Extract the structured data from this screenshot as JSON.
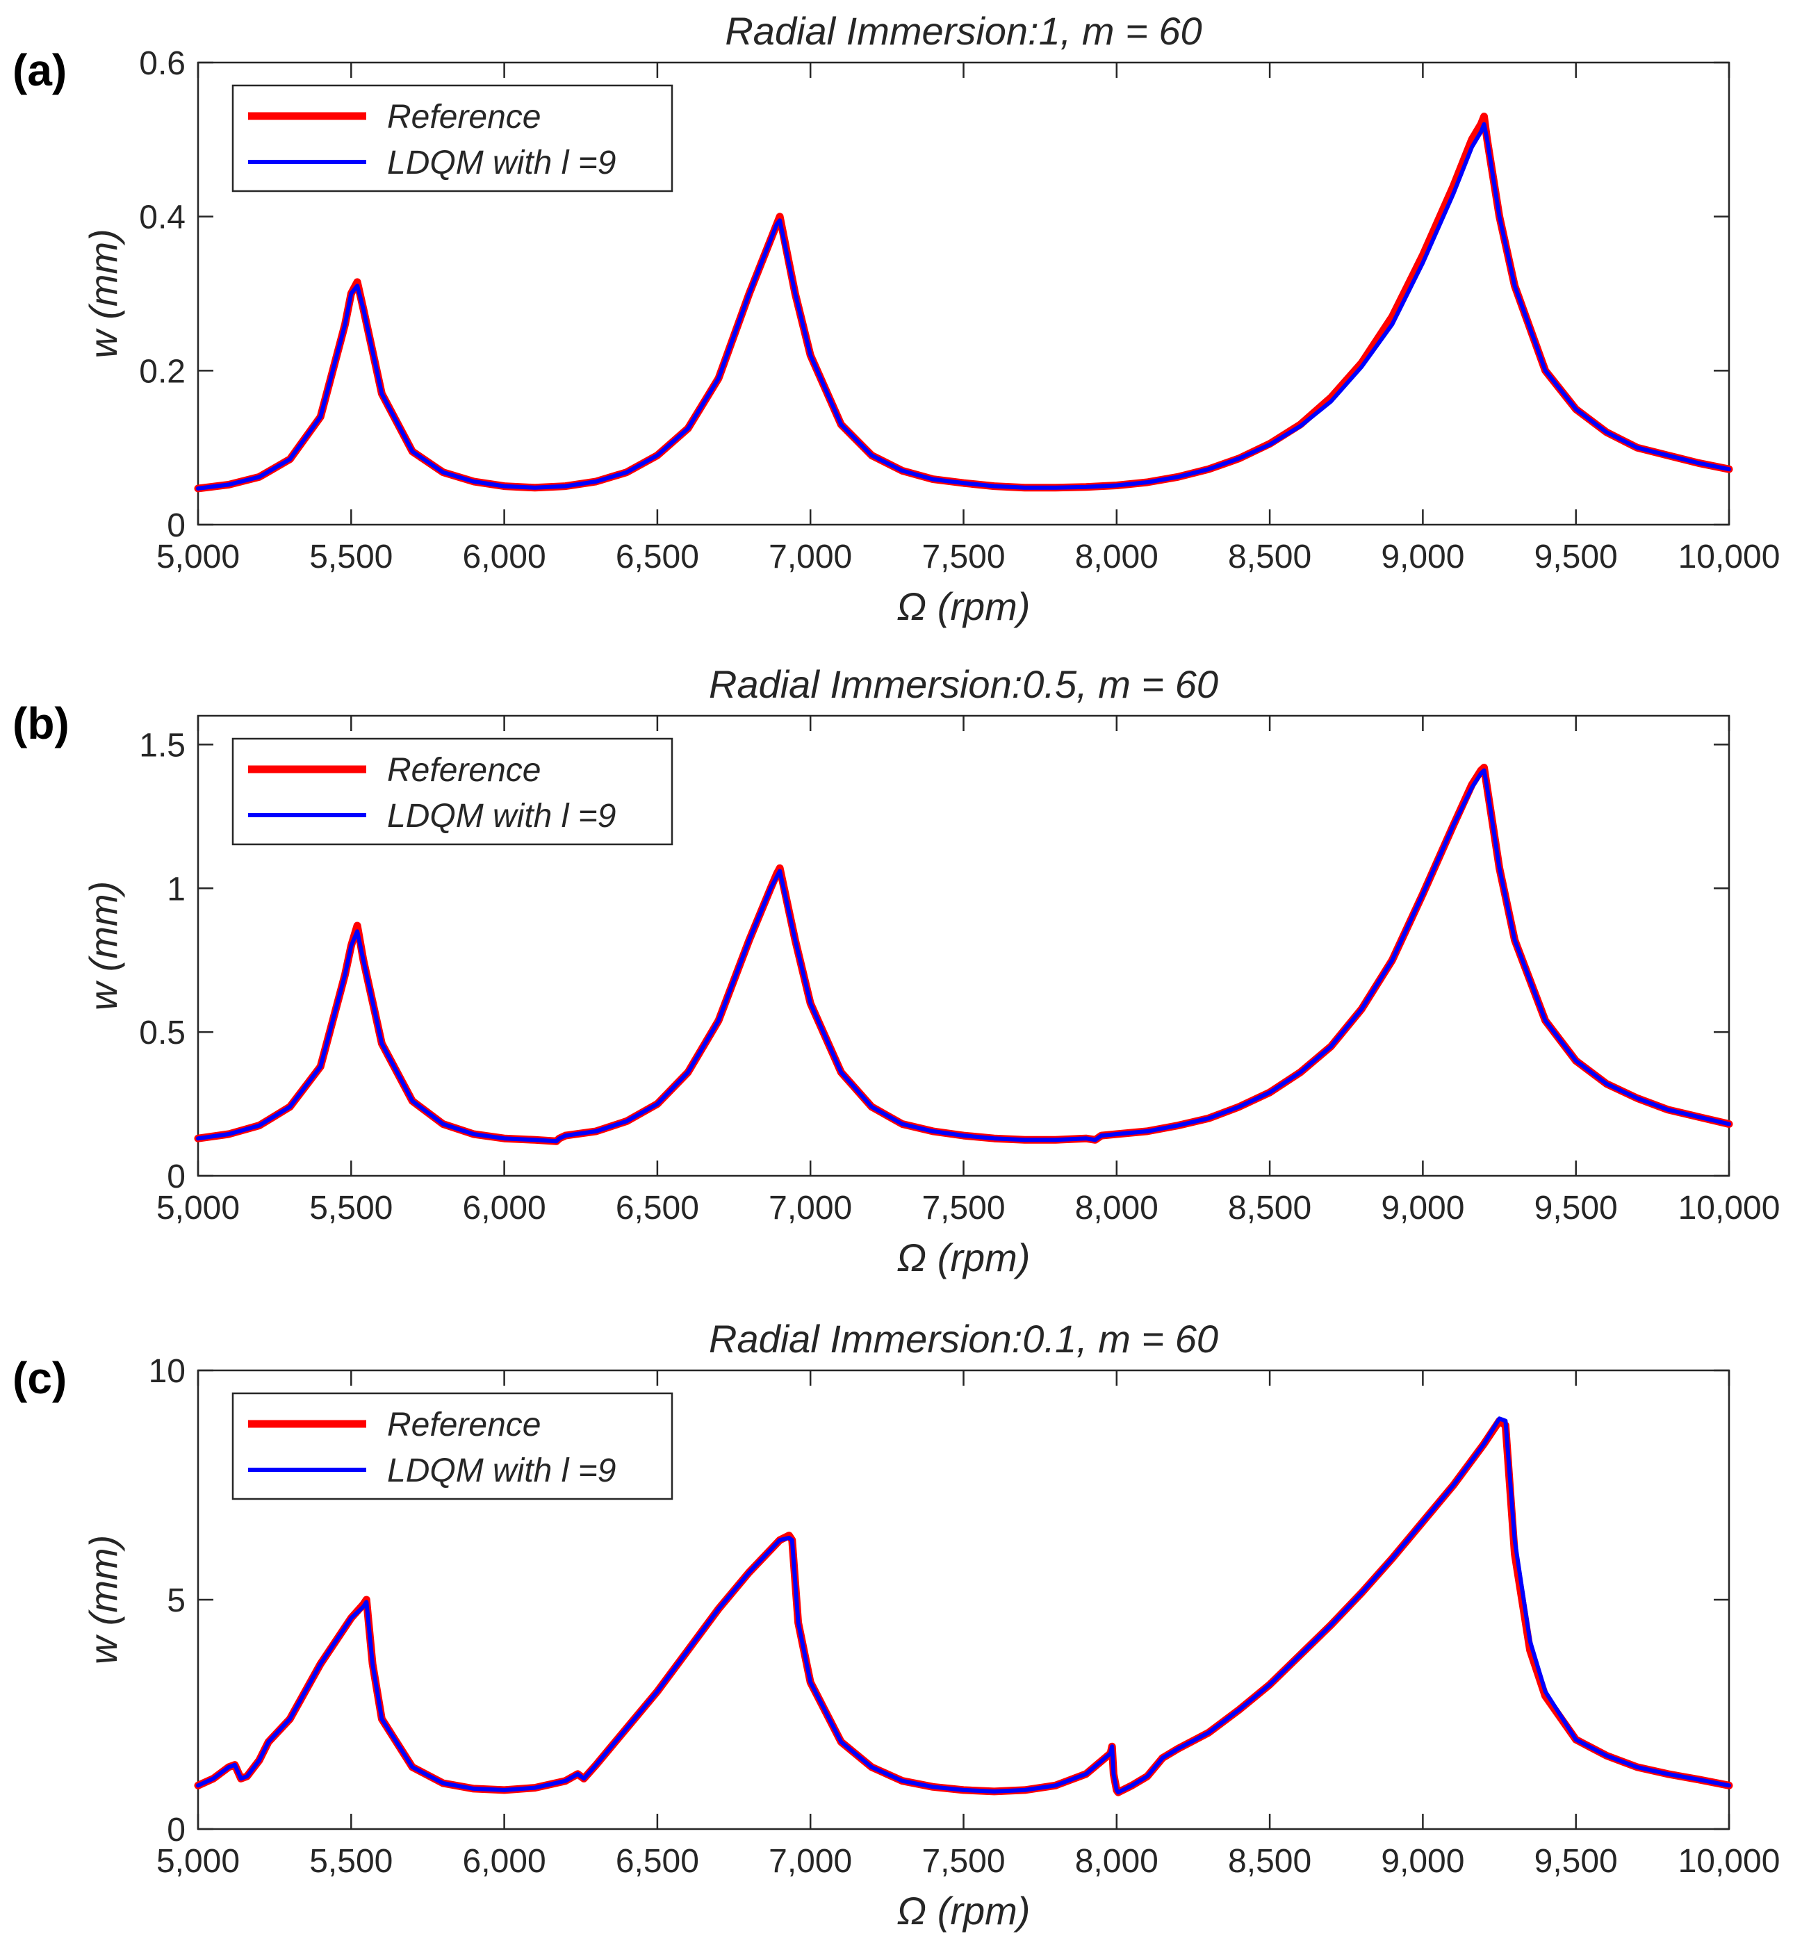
{
  "colors": {
    "reference": "#ff0000",
    "ldqm": "#0000ff",
    "axis": "#262626",
    "background": "#ffffff"
  },
  "chart_data": [
    {
      "type": "line",
      "panel": "(a)",
      "title": "Radial Immersion:1,  m = 60",
      "xlabel": "Ω (rpm)",
      "ylabel": "w (mm)",
      "xlim": [
        5000,
        10000
      ],
      "ylim": [
        0,
        0.6
      ],
      "xticks": [
        5000,
        5500,
        6000,
        6500,
        7000,
        7500,
        8000,
        8500,
        9000,
        9500,
        10000
      ],
      "xtick_labels": [
        "5,000",
        "5,500",
        "6,000",
        "6,500",
        "7,000",
        "7,500",
        "8,000",
        "8,500",
        "9,000",
        "9,500",
        "10,000"
      ],
      "yticks": [
        0,
        0.2,
        0.4,
        0.6
      ],
      "ytick_labels": [
        "0",
        "0.2",
        "0.4",
        "0.6"
      ],
      "legend": {
        "position": "top-left",
        "entries": [
          "Reference",
          "LDQM  with  l =9"
        ]
      },
      "series": [
        {
          "name": "Reference",
          "color": "#ff0000",
          "x": [
            5000,
            5100,
            5200,
            5300,
            5400,
            5480,
            5500,
            5520,
            5540,
            5600,
            5700,
            5800,
            5900,
            6000,
            6100,
            6200,
            6300,
            6400,
            6500,
            6600,
            6700,
            6800,
            6870,
            6890,
            6900,
            6950,
            7000,
            7100,
            7200,
            7300,
            7400,
            7500,
            7600,
            7700,
            7800,
            7900,
            8000,
            8100,
            8200,
            8300,
            8400,
            8500,
            8600,
            8700,
            8800,
            8900,
            9000,
            9100,
            9160,
            9190,
            9200,
            9210,
            9250,
            9300,
            9400,
            9500,
            9600,
            9700,
            9800,
            9900,
            10000
          ],
          "y": [
            0.047,
            0.052,
            0.062,
            0.085,
            0.14,
            0.26,
            0.3,
            0.315,
            0.28,
            0.17,
            0.095,
            0.068,
            0.056,
            0.05,
            0.048,
            0.05,
            0.056,
            0.068,
            0.09,
            0.125,
            0.19,
            0.3,
            0.37,
            0.39,
            0.4,
            0.3,
            0.22,
            0.13,
            0.09,
            0.07,
            0.059,
            0.054,
            0.05,
            0.048,
            0.048,
            0.049,
            0.051,
            0.055,
            0.062,
            0.072,
            0.086,
            0.105,
            0.13,
            0.165,
            0.21,
            0.27,
            0.35,
            0.44,
            0.5,
            0.52,
            0.53,
            0.5,
            0.4,
            0.31,
            0.2,
            0.15,
            0.12,
            0.1,
            0.09,
            0.08,
            0.072
          ]
        },
        {
          "name": "LDQM  with  l =9",
          "color": "#0000ff",
          "x": [
            5000,
            5100,
            5200,
            5300,
            5400,
            5480,
            5500,
            5520,
            5540,
            5600,
            5700,
            5800,
            5900,
            6000,
            6100,
            6200,
            6300,
            6400,
            6500,
            6600,
            6700,
            6800,
            6870,
            6890,
            6900,
            6950,
            7000,
            7100,
            7200,
            7300,
            7400,
            7500,
            7600,
            7700,
            7800,
            7900,
            8000,
            8100,
            8200,
            8300,
            8400,
            8500,
            8600,
            8700,
            8800,
            8900,
            9000,
            9100,
            9160,
            9190,
            9200,
            9210,
            9250,
            9300,
            9400,
            9500,
            9600,
            9700,
            9800,
            9900,
            10000
          ],
          "y": [
            0.047,
            0.052,
            0.062,
            0.085,
            0.14,
            0.26,
            0.3,
            0.31,
            0.28,
            0.17,
            0.095,
            0.068,
            0.056,
            0.05,
            0.048,
            0.05,
            0.056,
            0.068,
            0.09,
            0.125,
            0.19,
            0.3,
            0.37,
            0.39,
            0.395,
            0.3,
            0.22,
            0.13,
            0.09,
            0.07,
            0.059,
            0.054,
            0.05,
            0.048,
            0.048,
            0.049,
            0.051,
            0.055,
            0.062,
            0.072,
            0.086,
            0.104,
            0.128,
            0.16,
            0.205,
            0.26,
            0.34,
            0.43,
            0.49,
            0.51,
            0.52,
            0.5,
            0.4,
            0.31,
            0.2,
            0.15,
            0.12,
            0.1,
            0.09,
            0.08,
            0.072
          ]
        }
      ]
    },
    {
      "type": "line",
      "panel": "(b)",
      "title": "Radial Immersion:0.5,  m = 60",
      "xlabel": "Ω (rpm)",
      "ylabel": "w (mm)",
      "xlim": [
        5000,
        10000
      ],
      "ylim": [
        0,
        1.6
      ],
      "xticks": [
        5000,
        5500,
        6000,
        6500,
        7000,
        7500,
        8000,
        8500,
        9000,
        9500,
        10000
      ],
      "xtick_labels": [
        "5,000",
        "5,500",
        "6,000",
        "6,500",
        "7,000",
        "7,500",
        "8,000",
        "8,500",
        "9,000",
        "9,500",
        "10,000"
      ],
      "yticks": [
        0,
        0.5,
        1,
        1.5
      ],
      "ytick_labels": [
        "0",
        "0.5",
        "1",
        "1.5"
      ],
      "legend": {
        "position": "top-left",
        "entries": [
          "Reference",
          "LDQM  with  l =9"
        ]
      },
      "series": [
        {
          "name": "Reference",
          "color": "#ff0000",
          "x": [
            5000,
            5100,
            5200,
            5300,
            5400,
            5480,
            5500,
            5520,
            5540,
            5600,
            5700,
            5800,
            5900,
            6000,
            6100,
            6170,
            6180,
            6200,
            6300,
            6400,
            6500,
            6600,
            6700,
            6800,
            6870,
            6890,
            6900,
            6950,
            7000,
            7100,
            7200,
            7300,
            7400,
            7500,
            7600,
            7700,
            7800,
            7900,
            7930,
            7950,
            8000,
            8100,
            8200,
            8300,
            8400,
            8500,
            8600,
            8700,
            8800,
            8900,
            9000,
            9100,
            9160,
            9190,
            9200,
            9210,
            9250,
            9300,
            9400,
            9500,
            9600,
            9700,
            9800,
            9900,
            10000
          ],
          "y": [
            0.13,
            0.145,
            0.175,
            0.24,
            0.38,
            0.7,
            0.8,
            0.87,
            0.75,
            0.46,
            0.26,
            0.18,
            0.145,
            0.13,
            0.125,
            0.12,
            0.13,
            0.14,
            0.155,
            0.19,
            0.25,
            0.36,
            0.54,
            0.82,
            1.0,
            1.05,
            1.07,
            0.82,
            0.6,
            0.36,
            0.24,
            0.18,
            0.155,
            0.14,
            0.13,
            0.125,
            0.125,
            0.13,
            0.125,
            0.14,
            0.145,
            0.155,
            0.175,
            0.2,
            0.24,
            0.29,
            0.36,
            0.45,
            0.58,
            0.75,
            0.98,
            1.22,
            1.36,
            1.41,
            1.42,
            1.35,
            1.07,
            0.82,
            0.54,
            0.4,
            0.32,
            0.27,
            0.23,
            0.205,
            0.18
          ]
        },
        {
          "name": "LDQM  with  l =9",
          "color": "#0000ff",
          "x": [
            5000,
            5100,
            5200,
            5300,
            5400,
            5480,
            5500,
            5520,
            5540,
            5600,
            5700,
            5800,
            5900,
            6000,
            6100,
            6170,
            6180,
            6200,
            6300,
            6400,
            6500,
            6600,
            6700,
            6800,
            6870,
            6890,
            6900,
            6950,
            7000,
            7100,
            7200,
            7300,
            7400,
            7500,
            7600,
            7700,
            7800,
            7900,
            7930,
            7950,
            8000,
            8100,
            8200,
            8300,
            8400,
            8500,
            8600,
            8700,
            8800,
            8900,
            9000,
            9100,
            9160,
            9190,
            9200,
            9210,
            9250,
            9300,
            9400,
            9500,
            9600,
            9700,
            9800,
            9900,
            10000
          ],
          "y": [
            0.13,
            0.145,
            0.175,
            0.24,
            0.38,
            0.7,
            0.8,
            0.85,
            0.75,
            0.46,
            0.26,
            0.18,
            0.145,
            0.13,
            0.125,
            0.12,
            0.13,
            0.14,
            0.155,
            0.19,
            0.25,
            0.36,
            0.54,
            0.82,
            1.0,
            1.04,
            1.06,
            0.82,
            0.6,
            0.36,
            0.24,
            0.18,
            0.155,
            0.14,
            0.13,
            0.125,
            0.125,
            0.13,
            0.125,
            0.14,
            0.145,
            0.155,
            0.175,
            0.2,
            0.24,
            0.29,
            0.36,
            0.45,
            0.58,
            0.75,
            0.98,
            1.22,
            1.35,
            1.4,
            1.41,
            1.35,
            1.07,
            0.82,
            0.54,
            0.4,
            0.32,
            0.27,
            0.23,
            0.205,
            0.18
          ]
        }
      ]
    },
    {
      "type": "line",
      "panel": "(c)",
      "title": "Radial Immersion:0.1,  m = 60",
      "xlabel": "Ω (rpm)",
      "ylabel": "w (mm)",
      "xlim": [
        5000,
        10000
      ],
      "ylim": [
        0,
        10
      ],
      "xticks": [
        5000,
        5500,
        6000,
        6500,
        7000,
        7500,
        8000,
        8500,
        9000,
        9500,
        10000
      ],
      "xtick_labels": [
        "5,000",
        "5,500",
        "6,000",
        "6,500",
        "7,000",
        "7,500",
        "8,000",
        "8,500",
        "9,000",
        "9,500",
        "10,000"
      ],
      "yticks": [
        0,
        5,
        10
      ],
      "ytick_labels": [
        "0",
        "5",
        "10"
      ],
      "legend": {
        "position": "top-left",
        "entries": [
          "Reference",
          "LDQM  with  l =9"
        ]
      },
      "series": [
        {
          "name": "Reference",
          "color": "#ff0000",
          "x": [
            5000,
            5050,
            5100,
            5120,
            5140,
            5160,
            5200,
            5230,
            5300,
            5400,
            5500,
            5540,
            5550,
            5570,
            5600,
            5700,
            5800,
            5900,
            6000,
            6100,
            6200,
            6240,
            6260,
            6300,
            6350,
            6400,
            6500,
            6600,
            6700,
            6800,
            6900,
            6930,
            6940,
            6960,
            7000,
            7100,
            7200,
            7300,
            7400,
            7500,
            7600,
            7700,
            7800,
            7900,
            7980,
            7985,
            7990,
            8000,
            8005,
            8050,
            8100,
            8150,
            8200,
            8300,
            8400,
            8500,
            8600,
            8700,
            8800,
            8900,
            9000,
            9100,
            9200,
            9250,
            9270,
            9300,
            9350,
            9400,
            9500,
            9600,
            9700,
            9800,
            9900,
            10000
          ],
          "y": [
            0.95,
            1.1,
            1.35,
            1.4,
            1.1,
            1.15,
            1.5,
            1.9,
            2.4,
            3.6,
            4.6,
            4.9,
            5.0,
            3.6,
            2.4,
            1.35,
            1.0,
            0.88,
            0.85,
            0.9,
            1.05,
            1.2,
            1.1,
            1.4,
            1.8,
            2.2,
            3.0,
            3.9,
            4.8,
            5.6,
            6.3,
            6.4,
            6.3,
            4.5,
            3.2,
            1.9,
            1.35,
            1.05,
            0.92,
            0.85,
            0.82,
            0.85,
            0.95,
            1.2,
            1.65,
            1.8,
            1.2,
            0.85,
            0.8,
            0.95,
            1.15,
            1.55,
            1.75,
            2.1,
            2.6,
            3.15,
            3.8,
            4.45,
            5.15,
            5.9,
            6.7,
            7.5,
            8.4,
            8.9,
            8.8,
            6.0,
            3.9,
            2.9,
            1.95,
            1.6,
            1.35,
            1.2,
            1.08,
            0.95
          ]
        },
        {
          "name": "LDQM  with  l =9",
          "color": "#0000ff",
          "x": [
            5000,
            5050,
            5100,
            5120,
            5140,
            5160,
            5200,
            5230,
            5300,
            5400,
            5500,
            5540,
            5550,
            5570,
            5600,
            5700,
            5800,
            5900,
            6000,
            6100,
            6200,
            6240,
            6260,
            6300,
            6350,
            6400,
            6500,
            6600,
            6700,
            6800,
            6900,
            6930,
            6940,
            6960,
            7000,
            7100,
            7200,
            7300,
            7400,
            7500,
            7600,
            7700,
            7800,
            7900,
            7980,
            7985,
            7990,
            8000,
            8005,
            8050,
            8100,
            8150,
            8200,
            8300,
            8400,
            8500,
            8600,
            8700,
            8800,
            8900,
            9000,
            9100,
            9200,
            9250,
            9270,
            9300,
            9350,
            9400,
            9500,
            9600,
            9700,
            9800,
            9900,
            10000
          ],
          "y": [
            0.95,
            1.1,
            1.35,
            1.4,
            1.1,
            1.15,
            1.5,
            1.9,
            2.4,
            3.6,
            4.6,
            4.85,
            4.95,
            3.6,
            2.4,
            1.35,
            1.0,
            0.88,
            0.85,
            0.9,
            1.05,
            1.2,
            1.1,
            1.4,
            1.8,
            2.2,
            3.0,
            3.9,
            4.8,
            5.6,
            6.3,
            6.35,
            6.3,
            4.5,
            3.2,
            1.9,
            1.35,
            1.05,
            0.92,
            0.85,
            0.82,
            0.85,
            0.95,
            1.2,
            1.65,
            1.8,
            1.2,
            0.85,
            0.8,
            0.95,
            1.15,
            1.55,
            1.75,
            2.1,
            2.6,
            3.15,
            3.8,
            4.45,
            5.15,
            5.9,
            6.7,
            7.5,
            8.4,
            8.95,
            8.9,
            6.3,
            4.1,
            3.0,
            1.95,
            1.6,
            1.35,
            1.2,
            1.08,
            0.95
          ]
        }
      ]
    }
  ]
}
